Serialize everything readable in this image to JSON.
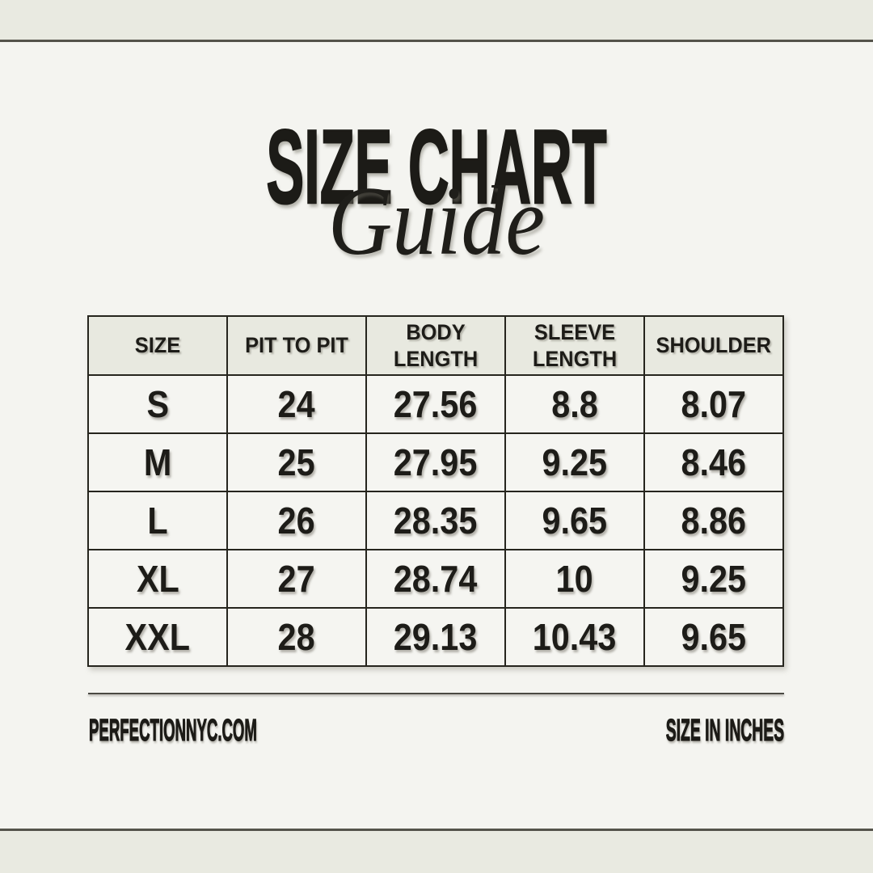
{
  "page": {
    "background": "#f4f4f0",
    "band_color": "#e9eae1",
    "accent_line_color": "#54534b",
    "text_color": "#1c1b17",
    "table_header_bg": "#e8e9e0",
    "table_cell_bg": "#f5f5f1",
    "table_border_color": "#26251e"
  },
  "title": {
    "main": "SIZE CHART",
    "script": "Guide"
  },
  "chart_data": {
    "type": "table",
    "title": "SIZE CHART",
    "subtitle": "Guide",
    "units": "inches",
    "columns": [
      "SIZE",
      "PIT TO PIT",
      "BODY LENGTH",
      "SLEEVE LENGTH",
      "SHOULDER"
    ],
    "rows": [
      [
        "S",
        "24",
        "27.56",
        "8.8",
        "8.07"
      ],
      [
        "M",
        "25",
        "27.95",
        "9.25",
        "8.46"
      ],
      [
        "L",
        "26",
        "28.35",
        "9.65",
        "8.86"
      ],
      [
        "XL",
        "27",
        "28.74",
        "10",
        "9.25"
      ],
      [
        "XXL",
        "28",
        "29.13",
        "10.43",
        "9.65"
      ]
    ]
  },
  "footer": {
    "website": "PERFECTIONNYC.COM",
    "units_note": "SIZE IN INCHES"
  }
}
